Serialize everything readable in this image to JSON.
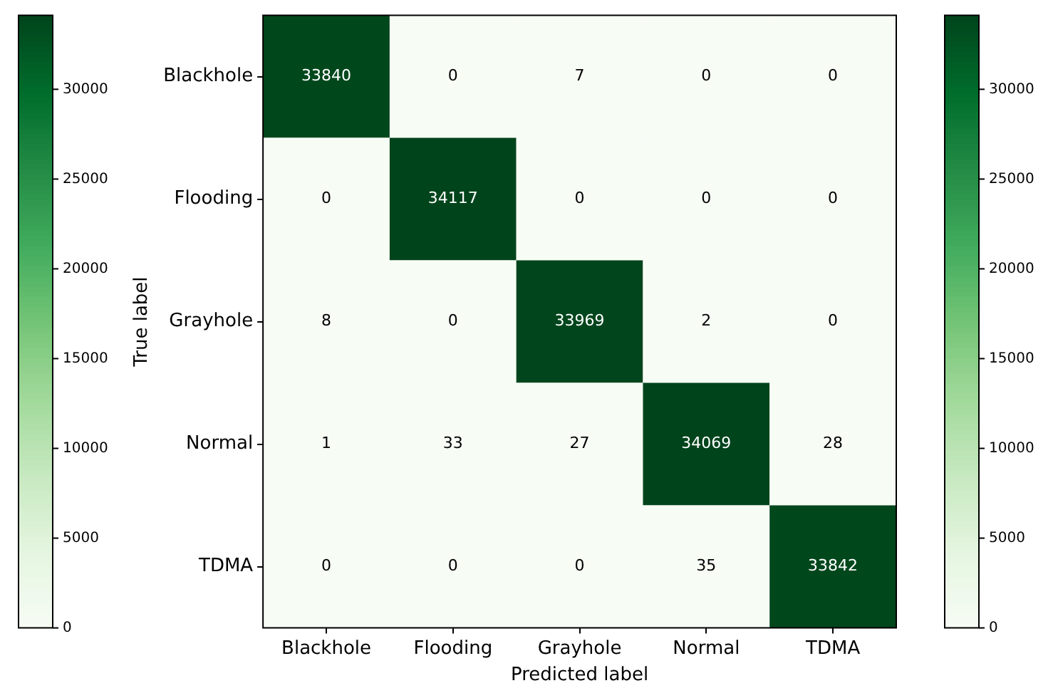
{
  "chart_data": {
    "type": "heatmap",
    "xlabel": "Predicted label",
    "ylabel": "True label",
    "categories": [
      "Blackhole",
      "Flooding",
      "Grayhole",
      "Normal",
      "TDMA"
    ],
    "y_categories": [
      "Blackhole",
      "Flooding",
      "Grayhole",
      "Normal",
      "TDMA"
    ],
    "cells": [
      [
        33840,
        0,
        7,
        0,
        0
      ],
      [
        0,
        34117,
        0,
        0,
        0
      ],
      [
        8,
        0,
        33969,
        2,
        0
      ],
      [
        1,
        33,
        27,
        34069,
        28
      ],
      [
        0,
        0,
        0,
        35,
        33842
      ]
    ],
    "clim": [
      0,
      34117
    ],
    "cticks": [
      0,
      5000,
      10000,
      15000,
      20000,
      25000,
      30000
    ],
    "y2lim": [
      0,
      34117
    ],
    "y2ticks": [
      0,
      5000,
      10000,
      15000,
      20000,
      25000,
      30000
    ],
    "data_labels": true,
    "grid": false,
    "legend": false
  }
}
